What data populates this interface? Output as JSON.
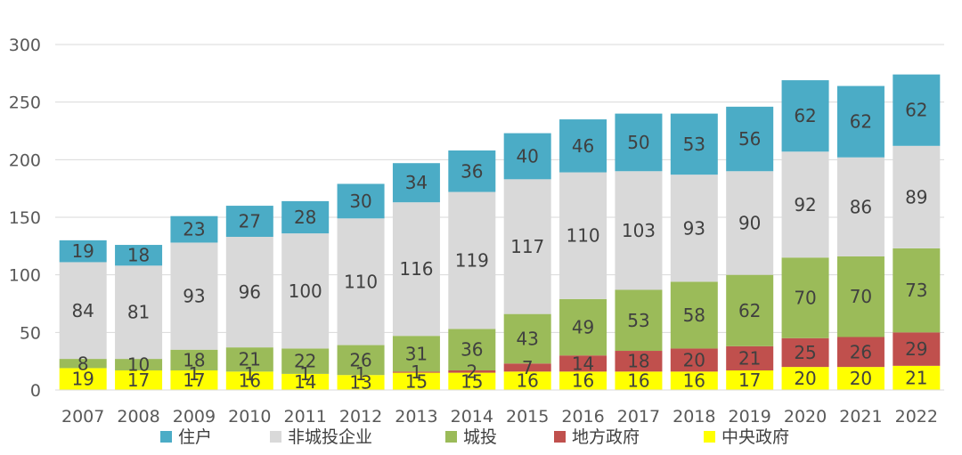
{
  "chart_data": {
    "type": "bar",
    "stacked": true,
    "categories": [
      "2007",
      "2008",
      "2009",
      "2010",
      "2011",
      "2012",
      "2013",
      "2014",
      "2015",
      "2016",
      "2017",
      "2018",
      "2019",
      "2020",
      "2021",
      "2022"
    ],
    "ylim": [
      0,
      300
    ],
    "yticks": [
      0,
      50,
      100,
      150,
      200,
      250,
      300
    ],
    "grid": true,
    "legend_position": "bottom",
    "series": [
      {
        "name": "中央政府",
        "color": "#FFFF00",
        "values": [
          19,
          17,
          17,
          16,
          14,
          13,
          15,
          15,
          16,
          16,
          16,
          16,
          17,
          20,
          20,
          21
        ]
      },
      {
        "name": "地方政府",
        "color": "#C0504D",
        "values": [
          0,
          0,
          0,
          0,
          0,
          0,
          1,
          2,
          7,
          14,
          18,
          20,
          21,
          25,
          26,
          29
        ],
        "labels": [
          "",
          "",
          "",
          "",
          "",
          "",
          "1",
          "2",
          "7",
          "14",
          "18",
          "20",
          "21",
          "25",
          "26",
          "29"
        ]
      },
      {
        "name": "城投",
        "color": "#9BBB59",
        "values": [
          8,
          10,
          18,
          21,
          22,
          26,
          31,
          36,
          43,
          49,
          53,
          58,
          62,
          70,
          70,
          73
        ]
      },
      {
        "name": "非城投企业",
        "color": "#D9D9D9",
        "values": [
          84,
          81,
          93,
          96,
          100,
          110,
          116,
          119,
          117,
          110,
          103,
          93,
          90,
          92,
          86,
          89
        ]
      },
      {
        "name": "住户",
        "color": "#4BACC6",
        "values": [
          19,
          18,
          23,
          27,
          28,
          30,
          34,
          36,
          40,
          46,
          50,
          53,
          56,
          62,
          62,
          62
        ]
      }
    ],
    "legend_order": [
      "住户",
      "非城投企业",
      "城投",
      "地方政府",
      "中央政府"
    ],
    "extra_labels": [
      {
        "category": "2009",
        "text": "1"
      },
      {
        "category": "2010",
        "text": "1"
      },
      {
        "category": "2011",
        "text": "1"
      },
      {
        "category": "2012",
        "text": "1"
      }
    ]
  }
}
